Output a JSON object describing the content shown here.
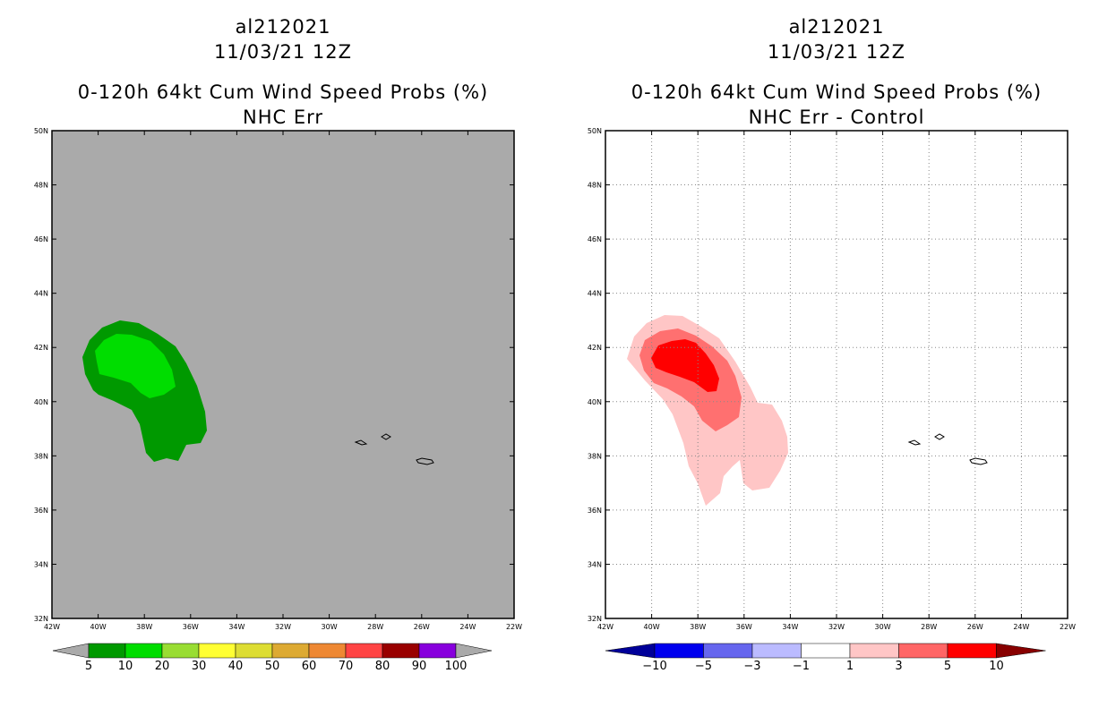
{
  "chart_data": [
    {
      "type": "heatmap",
      "storm_id": "al212021",
      "datetime": "11/03/21 12Z",
      "title": "0-120h 64kt Cum Wind Speed Probs (%)",
      "subtitle": "NHC Err",
      "lon_range": [
        -42,
        -22
      ],
      "lat_range": [
        32,
        50
      ],
      "x_ticks": [
        "42W",
        "40W",
        "38W",
        "36W",
        "34W",
        "32W",
        "30W",
        "28W",
        "26W",
        "24W",
        "22W"
      ],
      "y_ticks": [
        "32N",
        "34N",
        "36N",
        "38N",
        "40N",
        "42N",
        "44N",
        "46N",
        "48N",
        "50N"
      ],
      "grid": false,
      "background": "#aaaaaa",
      "contour_levels": [
        5,
        10
      ],
      "contour_colors": [
        "#009900",
        "#00dd00"
      ],
      "colorbar": {
        "levels": [
          "5",
          "10",
          "20",
          "30",
          "40",
          "50",
          "60",
          "70",
          "80",
          "90",
          "100"
        ],
        "colors": [
          "#009900",
          "#00dd00",
          "#99dd33",
          "#ffff33",
          "#dddd33",
          "#ddaa33",
          "#ee8833",
          "#ff4444",
          "#990000",
          "#8800dd"
        ],
        "end_color": "#aaaaaa"
      }
    },
    {
      "type": "heatmap",
      "storm_id": "al212021",
      "datetime": "11/03/21 12Z",
      "title": "0-120h 64kt Cum Wind Speed Probs (%)",
      "subtitle": "NHC Err - Control",
      "lon_range": [
        -42,
        -22
      ],
      "lat_range": [
        32,
        50
      ],
      "x_ticks": [
        "42W",
        "40W",
        "38W",
        "36W",
        "34W",
        "32W",
        "30W",
        "28W",
        "26W",
        "24W",
        "22W"
      ],
      "y_ticks": [
        "32N",
        "34N",
        "36N",
        "38N",
        "40N",
        "42N",
        "44N",
        "46N",
        "48N",
        "50N"
      ],
      "grid": true,
      "background": "#ffffff",
      "contour_levels": [
        1,
        3,
        5
      ],
      "contour_colors": [
        "#ffc6c6",
        "#ff7070",
        "#ff0000"
      ],
      "colorbar": {
        "levels": [
          "-10",
          "-5",
          "-3",
          "-1",
          "1",
          "3",
          "5",
          "10"
        ],
        "colors": [
          "#0000ee",
          "#6666ee",
          "#bbbbff",
          "#ffffff",
          "#ffc6c6",
          "#ff6666",
          "#ff0000"
        ],
        "left_end_color": "#000099",
        "right_end_color": "#880000"
      }
    }
  ],
  "colors": {
    "axis": "#000000",
    "grid": "#888888",
    "land_outline": "#000000"
  }
}
